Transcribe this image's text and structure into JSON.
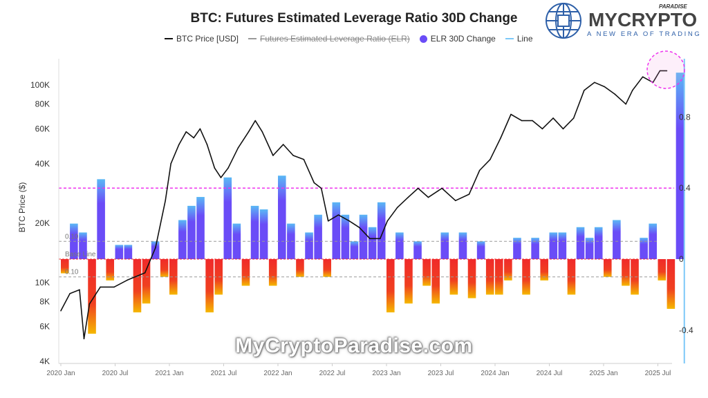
{
  "brand": {
    "logo_text": "MYCRYPTO",
    "logo_sup": "PARADISE",
    "logo_tagline": "A NEW ERA OF TRADING",
    "watermark": "MyCryptoParadise.com"
  },
  "colors": {
    "price": "#111111",
    "elr_positive": "#6a4cf7",
    "elr_positive_top": "#5ab8f5",
    "elr_negative": "#f02a2a",
    "elr_negative_tip": "#f5b800",
    "line": "#7cc8f8",
    "threshold": "#ee33ee",
    "reference": "#999999"
  },
  "chart_data": {
    "type": "bar+line",
    "title": "BTC: Futures Estimated Leverage Ratio 30D Change",
    "legend": [
      {
        "name": "BTC Price [USD]",
        "style": "line",
        "color": "#111111",
        "hidden": false
      },
      {
        "name": "Futures Estimated Leverage Ratio (ELR)",
        "style": "line",
        "color": "#999999",
        "hidden": true
      },
      {
        "name": "ELR 30D Change",
        "style": "dot",
        "color": "#6a4cf7",
        "hidden": false
      },
      {
        "name": "Line",
        "style": "line",
        "color": "#7cc8f8",
        "hidden": false
      }
    ],
    "legend_position": "top",
    "ylabel_left": "BTC Price ($)",
    "left_axis": {
      "scale": "log",
      "ticks": [
        4000,
        6000,
        8000,
        10000,
        20000,
        40000,
        60000,
        80000,
        100000
      ],
      "tick_labels": [
        "4K",
        "6K",
        "8K",
        "10K",
        "20K",
        "40K",
        "60K",
        "80K",
        "100K"
      ]
    },
    "right_axis": {
      "scale": "linear",
      "ticks": [
        -0.4,
        0,
        0.4,
        0.8
      ],
      "tick_labels": [
        "-0.4",
        "0",
        "0.4",
        "0.8"
      ]
    },
    "x_ticks": [
      "2020 Jan",
      "2020 Jul",
      "2021 Jan",
      "2021 Jul",
      "2022 Jan",
      "2022 Jul",
      "2023 Jan",
      "2023 Jul",
      "2024 Jan",
      "2024 Jul",
      "2025 Jan",
      "2025 Jul"
    ],
    "reference_lines": [
      {
        "value": 0.4,
        "color": "#ee33ee",
        "label": ""
      },
      {
        "value": 0.1,
        "color": "#999999",
        "label": "0.10"
      },
      {
        "value": 0,
        "color": "#f02a2a",
        "label": "Base Line"
      },
      {
        "value": -0.1,
        "color": "#999999",
        "label": "0.10"
      }
    ],
    "highlight": "dashed circle around latest price and ELR spike",
    "btc_price": [
      [
        "2020-01-01",
        7200
      ],
      [
        "2020-02-01",
        8800
      ],
      [
        "2020-03-03",
        9200
      ],
      [
        "2020-03-18",
        5200
      ],
      [
        "2020-04-06",
        7800
      ],
      [
        "2020-05-12",
        9500
      ],
      [
        "2020-06-28",
        9500
      ],
      [
        "2020-08-12",
        10300
      ],
      [
        "2020-10-10",
        11200
      ],
      [
        "2020-11-15",
        15000
      ],
      [
        "2020-12-18",
        26000
      ],
      [
        "2021-01-06",
        40000
      ],
      [
        "2021-02-03",
        50000
      ],
      [
        "2021-02-27",
        58000
      ],
      [
        "2021-03-22",
        54000
      ],
      [
        "2021-04-13",
        60000
      ],
      [
        "2021-05-06",
        50000
      ],
      [
        "2021-06-01",
        38000
      ],
      [
        "2021-06-22",
        34000
      ],
      [
        "2021-07-16",
        38000
      ],
      [
        "2021-08-19",
        48000
      ],
      [
        "2021-09-24",
        58000
      ],
      [
        "2021-10-16",
        66000
      ],
      [
        "2021-11-09",
        58000
      ],
      [
        "2021-12-15",
        44000
      ],
      [
        "2022-01-19",
        50000
      ],
      [
        "2022-02-22",
        44000
      ],
      [
        "2022-03-27",
        42000
      ],
      [
        "2022-05-01",
        32000
      ],
      [
        "2022-05-25",
        30000
      ],
      [
        "2022-06-18",
        20500
      ],
      [
        "2022-07-22",
        22000
      ],
      [
        "2022-08-28",
        20500
      ],
      [
        "2022-10-01",
        19000
      ],
      [
        "2022-11-06",
        16700
      ],
      [
        "2022-12-10",
        16700
      ],
      [
        "2023-01-04",
        20500
      ],
      [
        "2023-02-07",
        24000
      ],
      [
        "2023-03-13",
        27000
      ],
      [
        "2023-04-16",
        30000
      ],
      [
        "2023-05-20",
        27000
      ],
      [
        "2023-07-05",
        30000
      ],
      [
        "2023-08-20",
        26000
      ],
      [
        "2023-10-05",
        28000
      ],
      [
        "2023-11-10",
        37000
      ],
      [
        "2023-12-15",
        42000
      ],
      [
        "2024-01-20",
        54000
      ],
      [
        "2024-02-24",
        71000
      ],
      [
        "2024-03-30",
        66000
      ],
      [
        "2024-05-05",
        66000
      ],
      [
        "2024-06-08",
        60000
      ],
      [
        "2024-07-14",
        68000
      ],
      [
        "2024-08-17",
        60000
      ],
      [
        "2024-09-22",
        68000
      ],
      [
        "2024-10-27",
        94000
      ],
      [
        "2024-12-01",
        103000
      ],
      [
        "2025-01-04",
        98000
      ],
      [
        "2025-02-08",
        90000
      ],
      [
        "2025-03-15",
        80000
      ],
      [
        "2025-04-07",
        94000
      ],
      [
        "2025-05-11",
        110000
      ],
      [
        "2025-06-15",
        103000
      ],
      [
        "2025-07-08",
        118000
      ],
      [
        "2025-07-31",
        118000
      ]
    ],
    "elr_30d_change": [
      [
        "2020-01",
        -0.08
      ],
      [
        "2020-02",
        0.2
      ],
      [
        "2020-03",
        0.15
      ],
      [
        "2020-04",
        -0.42
      ],
      [
        "2020-05",
        0.45
      ],
      [
        "2020-06",
        -0.12
      ],
      [
        "2020-07",
        0.08
      ],
      [
        "2020-08",
        0.08
      ],
      [
        "2020-09",
        -0.3
      ],
      [
        "2020-10",
        -0.25
      ],
      [
        "2020-11",
        0.1
      ],
      [
        "2020-12",
        -0.1
      ],
      [
        "2021-01",
        -0.2
      ],
      [
        "2021-02",
        0.22
      ],
      [
        "2021-03",
        0.3
      ],
      [
        "2021-04",
        0.35
      ],
      [
        "2021-05",
        -0.3
      ],
      [
        "2021-06",
        -0.2
      ],
      [
        "2021-07",
        0.46
      ],
      [
        "2021-08",
        0.2
      ],
      [
        "2021-09",
        -0.15
      ],
      [
        "2021-10",
        0.3
      ],
      [
        "2021-11",
        0.28
      ],
      [
        "2021-12",
        -0.15
      ],
      [
        "2022-01",
        0.47
      ],
      [
        "2022-02",
        0.2
      ],
      [
        "2022-03",
        -0.1
      ],
      [
        "2022-04",
        0.15
      ],
      [
        "2022-05",
        0.25
      ],
      [
        "2022-06",
        -0.1
      ],
      [
        "2022-07",
        0.32
      ],
      [
        "2022-08",
        0.25
      ],
      [
        "2022-09",
        0.1
      ],
      [
        "2022-10",
        0.25
      ],
      [
        "2022-11",
        0.18
      ],
      [
        "2022-12",
        0.32
      ],
      [
        "2023-01",
        -0.3
      ],
      [
        "2023-02",
        0.15
      ],
      [
        "2023-03",
        -0.25
      ],
      [
        "2023-04",
        0.1
      ],
      [
        "2023-05",
        -0.15
      ],
      [
        "2023-06",
        -0.25
      ],
      [
        "2023-07",
        0.15
      ],
      [
        "2023-08",
        -0.2
      ],
      [
        "2023-09",
        0.15
      ],
      [
        "2023-10",
        -0.22
      ],
      [
        "2023-11",
        0.1
      ],
      [
        "2023-12",
        -0.2
      ],
      [
        "2024-01",
        -0.2
      ],
      [
        "2024-02",
        -0.12
      ],
      [
        "2024-03",
        0.12
      ],
      [
        "2024-04",
        -0.2
      ],
      [
        "2024-05",
        0.12
      ],
      [
        "2024-06",
        -0.12
      ],
      [
        "2024-07",
        0.15
      ],
      [
        "2024-08",
        0.15
      ],
      [
        "2024-09",
        -0.2
      ],
      [
        "2024-10",
        0.18
      ],
      [
        "2024-11",
        0.12
      ],
      [
        "2024-12",
        0.18
      ],
      [
        "2025-01",
        -0.1
      ],
      [
        "2025-02",
        0.22
      ],
      [
        "2025-03",
        -0.15
      ],
      [
        "2025-04",
        -0.2
      ],
      [
        "2025-05",
        0.12
      ],
      [
        "2025-06",
        0.2
      ],
      [
        "2025-07",
        -0.12
      ],
      [
        "2025-08",
        -0.28
      ],
      [
        "2025-09",
        1.05
      ]
    ]
  }
}
